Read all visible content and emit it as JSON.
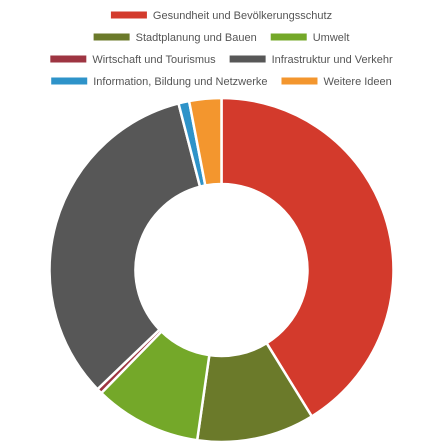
{
  "chart_data": {
    "type": "doughnut",
    "title": "",
    "legend_position": "top",
    "series": [
      {
        "name": "",
        "categories": [
          "Gesundheit und Bevölkerungsschutz",
          "Stadtplanung und Bauen",
          "Umwelt",
          "Wirtschaft und Tourismus",
          "Infrastruktur und Verkehr",
          "Information, Bildung und Netzwerke",
          "Weitere Ideen"
        ],
        "values": [
          41,
          11,
          10,
          0.5,
          33,
          1,
          3
        ],
        "colors": [
          "#d33a2c",
          "#6b7a2a",
          "#74a829",
          "#9e3542",
          "#575757",
          "#2e93c9",
          "#f3962e"
        ]
      }
    ]
  }
}
